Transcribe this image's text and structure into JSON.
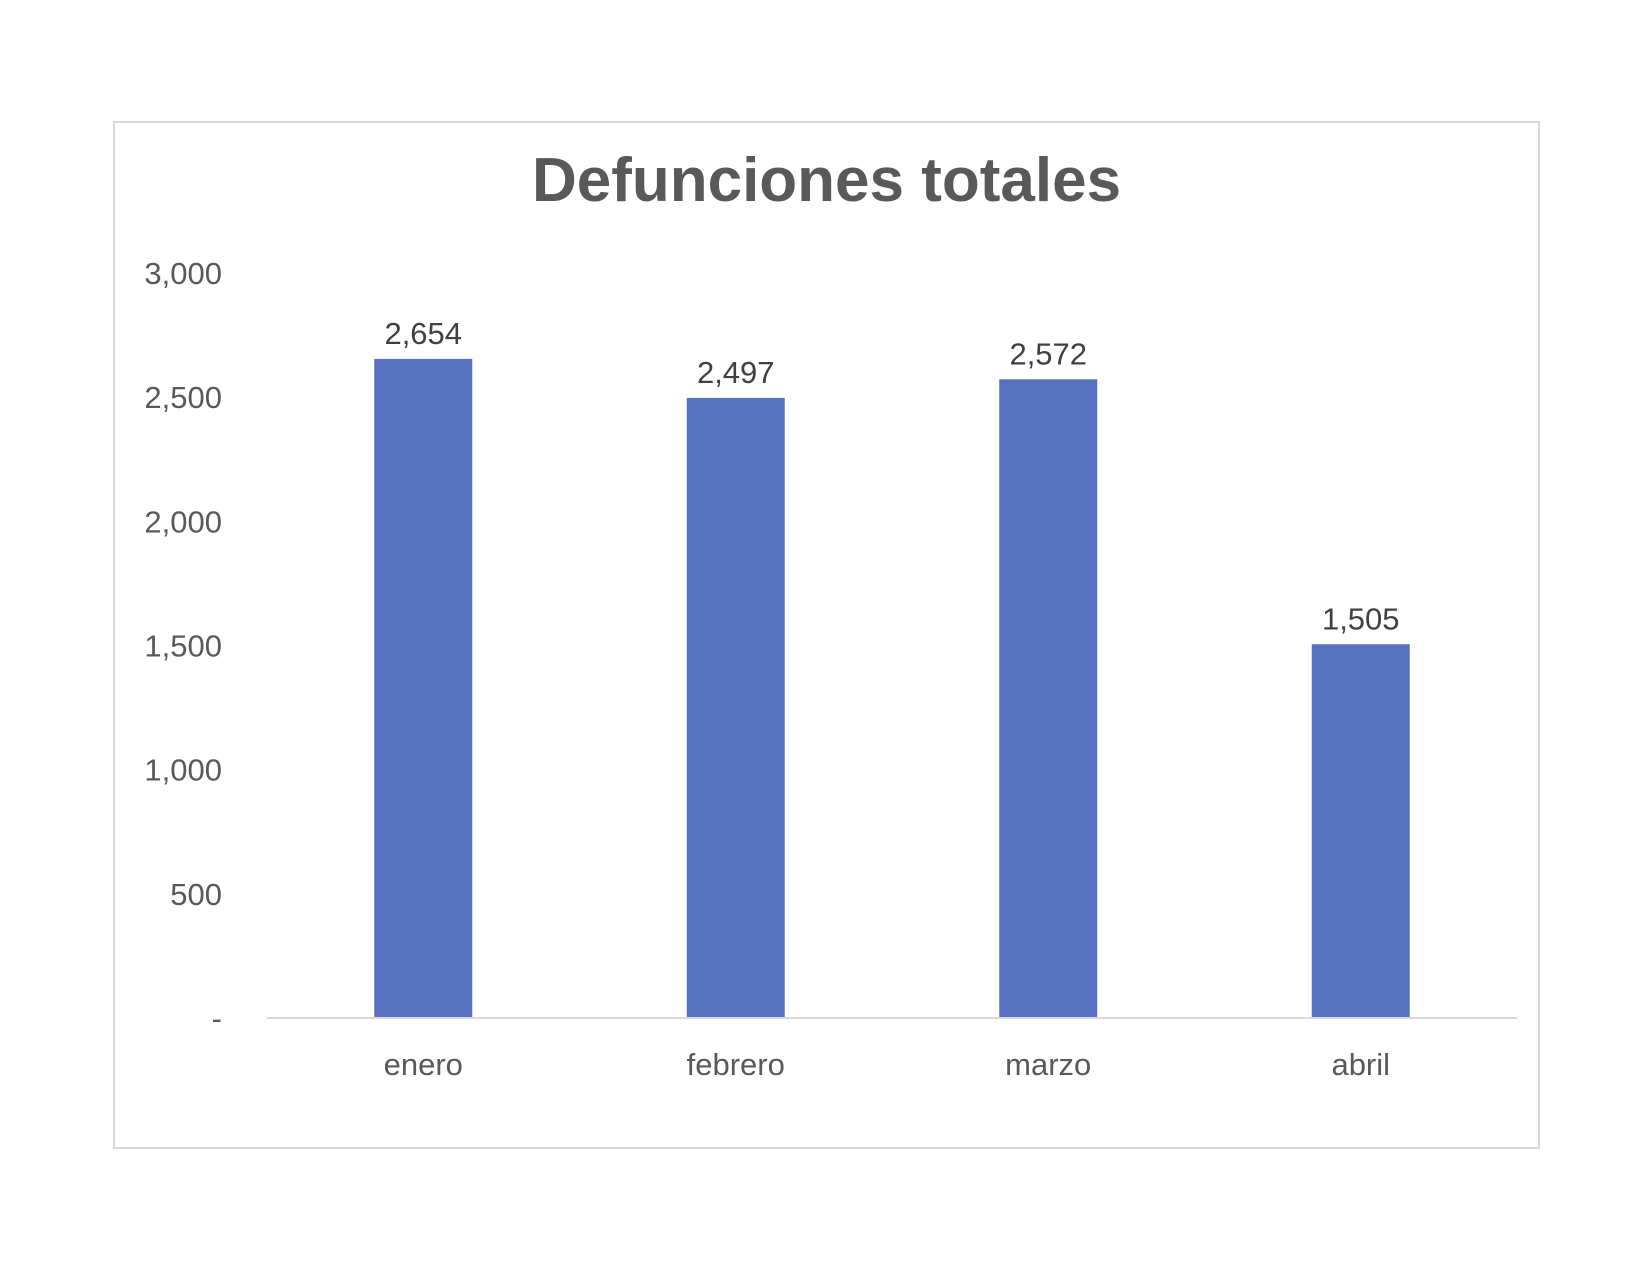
{
  "chart_data": {
    "type": "bar",
    "title": "Defunciones totales",
    "categories": [
      "enero",
      "febrero",
      "marzo",
      "abril"
    ],
    "values": [
      2654,
      2497,
      2572,
      1505
    ],
    "data_labels": [
      "2,654",
      "2,497",
      "2,572",
      "1,505"
    ],
    "y_ticks": [
      0,
      500,
      1000,
      1500,
      2000,
      2500,
      3000
    ],
    "y_tick_labels": [
      "-",
      "500",
      "1,000",
      "1,500",
      "2,000",
      "2,500",
      "3,000"
    ],
    "xlabel": "",
    "ylabel": "",
    "ylim": [
      0,
      3000
    ],
    "grid": false,
    "legend": "none",
    "bar_color": "#5672c0"
  }
}
